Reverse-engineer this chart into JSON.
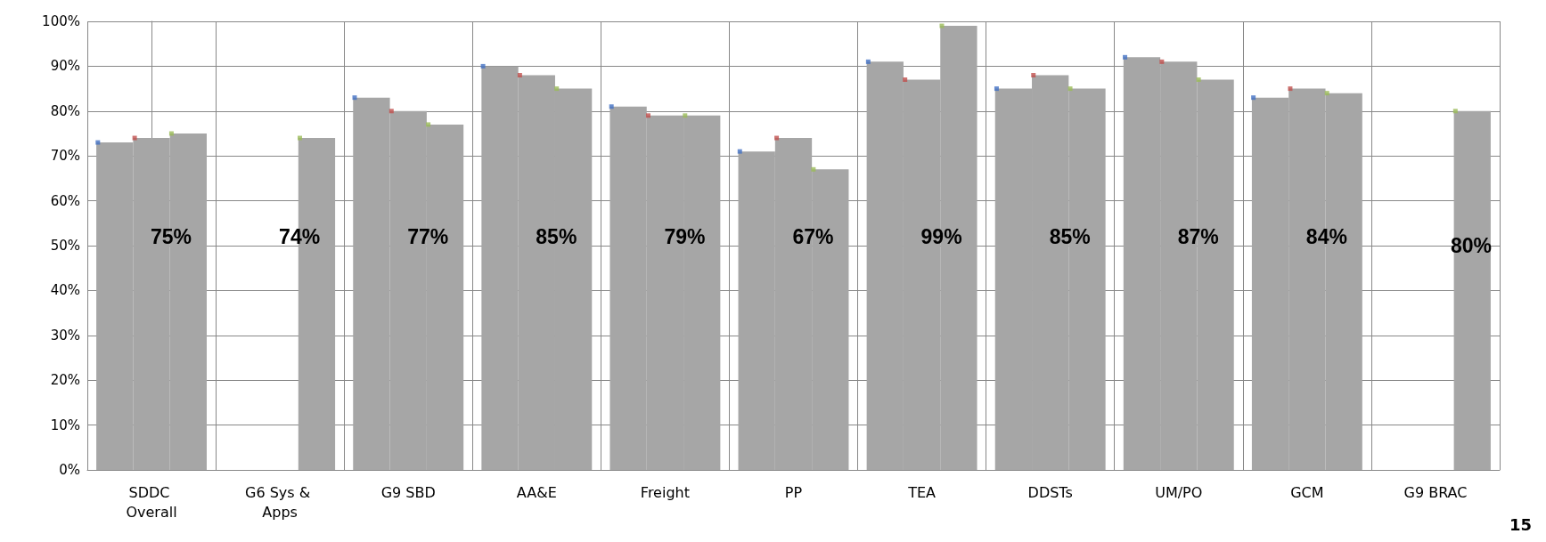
{
  "chart_data": {
    "type": "bar",
    "categories": [
      "SDDC Overall",
      "G6 Sys & Apps",
      "G9 SBD",
      "AA&E",
      "Freight",
      "PP",
      "TEA",
      "DDSTs",
      "UM/PO",
      "GCM",
      "G9 BRAC"
    ],
    "series": [
      {
        "color": "#a6a6a6",
        "values": [
          73,
          null,
          83,
          90,
          81,
          71,
          91,
          85,
          92,
          83,
          null
        ]
      },
      {
        "color": "#a6a6a6",
        "values": [
          74,
          null,
          80,
          88,
          79,
          74,
          87,
          88,
          91,
          85,
          null
        ]
      },
      {
        "color": "#a6a6a6",
        "values": [
          75,
          74,
          77,
          85,
          79,
          67,
          99,
          85,
          87,
          84,
          80
        ]
      },
      {
        "type": "scatter",
        "color": "#4472c4",
        "values": [
          73,
          null,
          83,
          90,
          81,
          71,
          91,
          85,
          92,
          83,
          null
        ]
      },
      {
        "type": "scatter",
        "color": "#c0504d",
        "values": [
          74,
          null,
          80,
          88,
          79,
          74,
          87,
          88,
          91,
          85,
          null
        ]
      },
      {
        "type": "scatter",
        "color": "#9bbb59",
        "values": [
          75,
          74,
          77,
          85,
          79,
          67,
          99,
          85,
          87,
          84,
          80
        ]
      }
    ],
    "ylim": [
      0,
      100
    ],
    "yticks": [
      {
        "value": 0,
        "label": "0%"
      },
      {
        "value": 10,
        "label": "10%"
      },
      {
        "value": 20,
        "label": "20%"
      },
      {
        "value": 30,
        "label": "30%"
      },
      {
        "value": 40,
        "label": "40%"
      },
      {
        "value": 50,
        "label": "50%"
      },
      {
        "value": 60,
        "label": "60%"
      },
      {
        "value": 70,
        "label": "70%"
      },
      {
        "value": 80,
        "label": "80%"
      },
      {
        "value": 90,
        "label": "90%"
      },
      {
        "value": 100,
        "label": "100%"
      }
    ],
    "grid": true,
    "marker": "square",
    "annotations": [
      "75%",
      "74%",
      "77%",
      "85%",
      "79%",
      "67%",
      "99%",
      "85%",
      "87%",
      "84%",
      "80%",
      "15"
    ]
  }
}
